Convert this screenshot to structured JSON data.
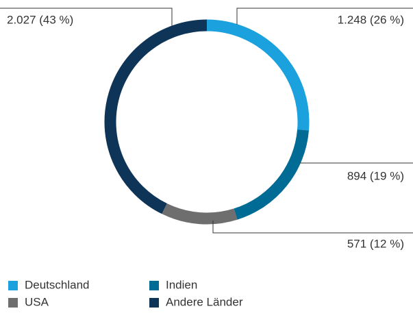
{
  "chart_data": {
    "type": "donut",
    "categories": [
      "Deutschland",
      "Indien",
      "USA",
      "Andere Länder"
    ],
    "values": [
      1248,
      894,
      571,
      2027
    ],
    "value_labels": [
      "1.248 (26 %)",
      "894 (19 %)",
      "571 (12 %)",
      "2.027 (43 %)"
    ],
    "colors": [
      "#1ba1dd",
      "#006b94",
      "#6e6e6e",
      "#0e3558"
    ],
    "legend": "bottom"
  }
}
